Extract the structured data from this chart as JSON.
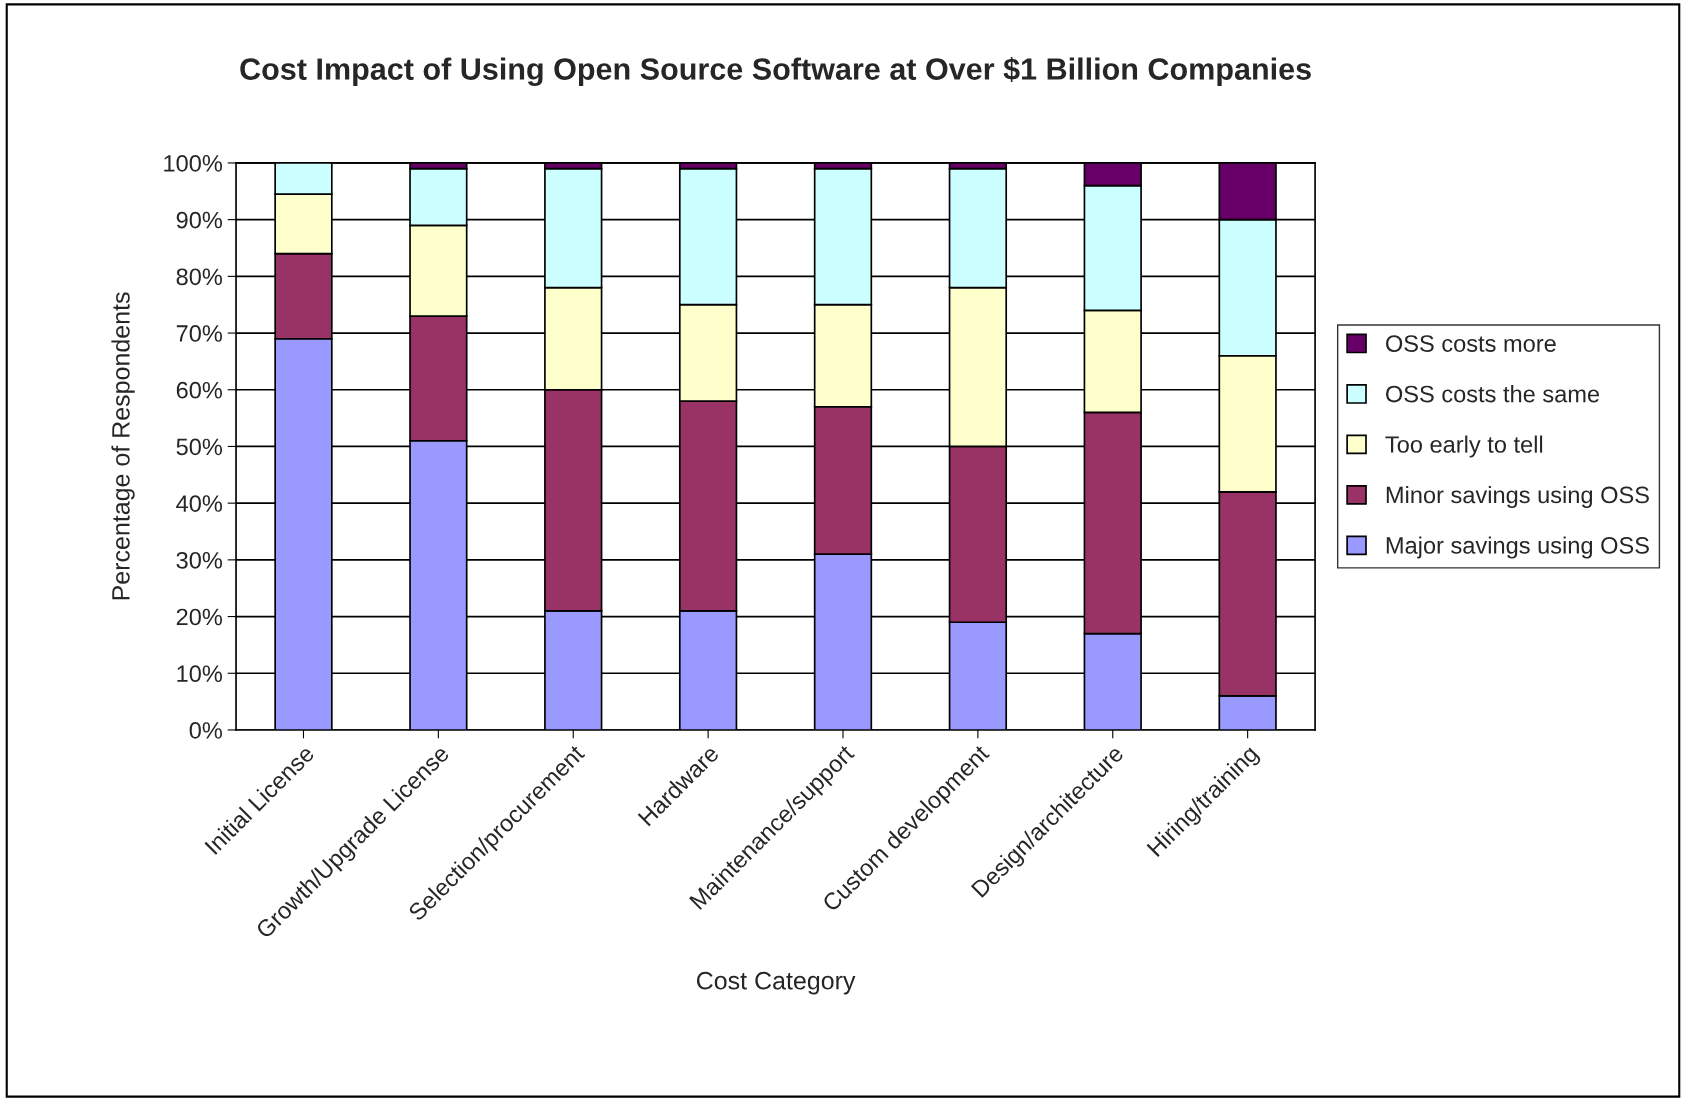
{
  "chart_data": {
    "type": "bar",
    "stacked": true,
    "title": "Cost Impact of Using Open Source Software at Over $1 Billion Companies",
    "xlabel": "Cost Category",
    "ylabel": "Percentage of Respondents",
    "categories": [
      "Initial License",
      "Growth/Upgrade License",
      "Selection/procurement",
      "Hardware",
      "Maintenance/support",
      "Custom development",
      "Design/architecture",
      "Hiring/training"
    ],
    "series": [
      {
        "name": "Major savings using OSS",
        "color": "#9999ff",
        "values": [
          69,
          51,
          21,
          21,
          31,
          19,
          17,
          6
        ]
      },
      {
        "name": "Minor savings using OSS",
        "color": "#993366",
        "values": [
          15,
          22,
          39,
          37,
          26,
          31,
          39,
          36
        ]
      },
      {
        "name": "Too early to tell",
        "color": "#ffffcc",
        "values": [
          10.5,
          16,
          18,
          17,
          18,
          28,
          18,
          24
        ]
      },
      {
        "name": "OSS costs the same",
        "color": "#ccffff",
        "values": [
          5.5,
          10,
          21,
          24,
          24,
          21,
          22,
          24
        ]
      },
      {
        "name": "OSS costs more",
        "color": "#660066",
        "values": [
          null,
          1,
          1,
          1,
          1,
          1,
          4,
          10
        ]
      }
    ],
    "ylim": [
      0,
      100
    ],
    "yticks": [
      {
        "value": 0,
        "label": "0%"
      },
      {
        "value": 10,
        "label": "10%"
      },
      {
        "value": 20,
        "label": "20%"
      },
      {
        "value": 30,
        "label": "30%"
      },
      {
        "value": 40,
        "label": "40%"
      },
      {
        "value": 50,
        "label": "50%"
      },
      {
        "value": 60,
        "label": "60%"
      },
      {
        "value": 70,
        "label": "70%"
      },
      {
        "value": 80,
        "label": "80%"
      },
      {
        "value": 90,
        "label": "90%"
      },
      {
        "value": 100,
        "label": "100%"
      }
    ],
    "grid": "y",
    "legend": "right"
  }
}
